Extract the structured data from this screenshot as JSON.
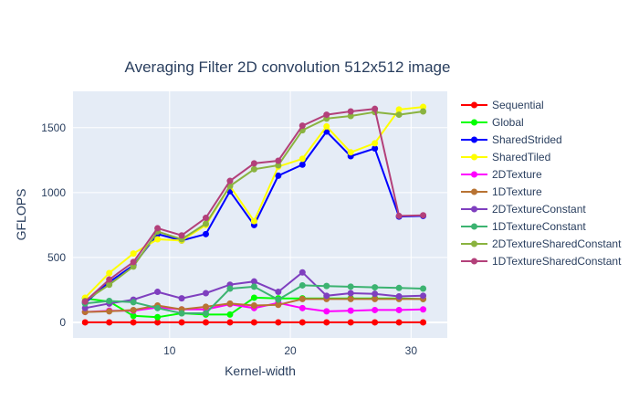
{
  "chart_data": {
    "type": "line",
    "title": "Averaging Filter 2D convolution 512x512 image",
    "xlabel": "Kernel-width",
    "ylabel": "GFLOPS",
    "xlim": [
      2,
      33
    ],
    "ylim": [
      -120,
      1780
    ],
    "xticks": [
      10,
      20,
      30
    ],
    "yticks": [
      0,
      500,
      1000,
      1500
    ],
    "grid": true,
    "legend_position": "right",
    "x": [
      3,
      5,
      7,
      9,
      11,
      13,
      15,
      17,
      19,
      21,
      23,
      25,
      27,
      29,
      31
    ],
    "series": [
      {
        "name": "Sequential",
        "color": "#ff0000",
        "values": [
          0,
          0,
          0,
          0,
          0,
          0,
          0,
          0,
          0,
          0,
          0,
          0,
          0,
          0,
          0
        ]
      },
      {
        "name": "Global",
        "color": "#00ff00",
        "values": [
          185,
          160,
          50,
          40,
          70,
          60,
          60,
          190,
          185,
          185,
          185,
          185,
          185,
          185,
          180
        ]
      },
      {
        "name": "SharedStrided",
        "color": "#0000ff",
        "values": [
          150,
          310,
          440,
          680,
          630,
          680,
          1010,
          750,
          1130,
          1215,
          1470,
          1280,
          1340,
          815,
          820
        ]
      },
      {
        "name": "SharedTiled",
        "color": "#ffff00",
        "values": [
          190,
          380,
          530,
          640,
          630,
          750,
          1050,
          780,
          1200,
          1260,
          1510,
          1310,
          1380,
          1640,
          1660
        ]
      },
      {
        "name": "2DTexture",
        "color": "#ff00ff",
        "values": [
          80,
          90,
          90,
          115,
          100,
          100,
          140,
          110,
          150,
          110,
          85,
          90,
          95,
          95,
          100
        ]
      },
      {
        "name": "1DTexture",
        "color": "#b87333",
        "values": [
          80,
          85,
          95,
          130,
          100,
          120,
          145,
          130,
          135,
          180,
          180,
          180,
          180,
          180,
          180
        ]
      },
      {
        "name": "2DTextureConstant",
        "color": "#7f3fbf",
        "values": [
          110,
          145,
          175,
          235,
          185,
          225,
          290,
          315,
          235,
          385,
          205,
          225,
          220,
          200,
          205
        ]
      },
      {
        "name": "1DTextureConstant",
        "color": "#3cb371",
        "values": [
          145,
          165,
          155,
          110,
          70,
          70,
          260,
          275,
          175,
          285,
          280,
          275,
          270,
          265,
          260
        ]
      },
      {
        "name": "2DTextureSharedConstant",
        "color": "#8ab33f",
        "values": [
          165,
          290,
          430,
          700,
          640,
          760,
          1050,
          1180,
          1210,
          1480,
          1570,
          1590,
          1620,
          1600,
          1625
        ]
      },
      {
        "name": "1DTextureSharedConstant",
        "color": "#b3407a",
        "values": [
          160,
          330,
          465,
          725,
          670,
          805,
          1090,
          1225,
          1245,
          1515,
          1600,
          1625,
          1645,
          820,
          825
        ]
      }
    ]
  }
}
